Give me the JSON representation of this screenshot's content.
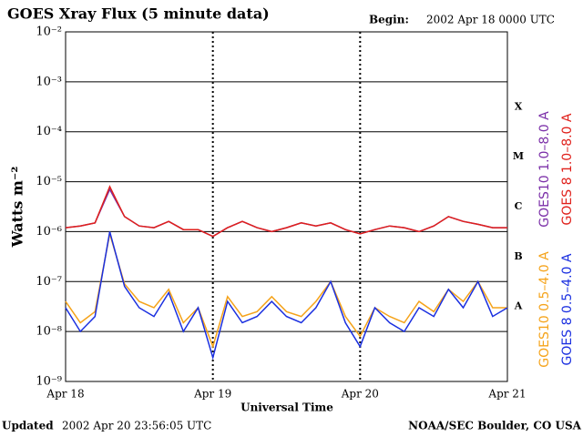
{
  "chart_data": {
    "type": "line",
    "title": "GOES Xray Flux (5 minute data)",
    "begin_label": "Begin:",
    "begin_time": "2002 Apr 18 0000 UTC",
    "y_label": "Watts m⁻²",
    "x_label": "Universal Time",
    "updated_label": "Updated",
    "updated_time": "2002 Apr 20 23:56:05 UTC",
    "source": "NOAA/SEC Boulder, CO USA",
    "class_labels": [
      "X",
      "M",
      "C",
      "B",
      "A"
    ],
    "log_y": true,
    "grid": true,
    "xlim": [
      0,
      3
    ],
    "xticks": [
      {
        "value": 0,
        "label": "Apr 18"
      },
      {
        "value": 1,
        "label": "Apr 19"
      },
      {
        "value": 2,
        "label": "Apr 20"
      },
      {
        "value": 3,
        "label": "Apr 21"
      }
    ],
    "ylim": [
      1e-09,
      0.01
    ],
    "yticks": [
      {
        "value": 1e-09,
        "label": "10⁻⁹"
      },
      {
        "value": 1e-08,
        "label": "10⁻⁸"
      },
      {
        "value": 1e-07,
        "label": "10⁻⁷"
      },
      {
        "value": 1e-06,
        "label": "10⁻⁶"
      },
      {
        "value": 1e-05,
        "label": "10⁻⁵"
      },
      {
        "value": 0.0001,
        "label": "10⁻⁴"
      },
      {
        "value": 0.001,
        "label": "10⁻³"
      },
      {
        "value": 0.01,
        "label": "10⁻²"
      }
    ],
    "x": [
      0,
      0.1,
      0.2,
      0.3,
      0.4,
      0.5,
      0.6,
      0.7,
      0.8,
      0.9,
      1.0,
      1.1,
      1.2,
      1.3,
      1.4,
      1.5,
      1.6,
      1.7,
      1.8,
      1.9,
      2.0,
      2.1,
      2.2,
      2.3,
      2.4,
      2.5,
      2.6,
      2.7,
      2.8,
      2.9,
      3.0
    ],
    "series": [
      {
        "name": "GOES10 1.0–8.0 A",
        "color": "#7b2fa8",
        "values": [
          1.2e-06,
          1.3e-06,
          1.5e-06,
          7e-06,
          2e-06,
          1.3e-06,
          1.2e-06,
          1.6e-06,
          1.1e-06,
          1.1e-06,
          8e-07,
          1.2e-06,
          1.6e-06,
          1.2e-06,
          1e-06,
          1.2e-06,
          1.5e-06,
          1.3e-06,
          1.5e-06,
          1.1e-06,
          9e-07,
          1.1e-06,
          1.3e-06,
          1.2e-06,
          1e-06,
          1.3e-06,
          2e-06,
          1.6e-06,
          1.4e-06,
          1.2e-06,
          1.2e-06
        ]
      },
      {
        "name": "GOES 8 1.0–8.0 A",
        "color": "#e0201b",
        "values": [
          1.2e-06,
          1.3e-06,
          1.5e-06,
          8e-06,
          2e-06,
          1.3e-06,
          1.2e-06,
          1.6e-06,
          1.1e-06,
          1.1e-06,
          8e-07,
          1.2e-06,
          1.6e-06,
          1.2e-06,
          1e-06,
          1.2e-06,
          1.5e-06,
          1.3e-06,
          1.5e-06,
          1.1e-06,
          9e-07,
          1.1e-06,
          1.3e-06,
          1.2e-06,
          1e-06,
          1.3e-06,
          2e-06,
          1.6e-06,
          1.4e-06,
          1.2e-06,
          1.2e-06
        ]
      },
      {
        "name": "GOES10 0.5–4.0 A",
        "color": "#f5a31a",
        "values": [
          4e-08,
          1.5e-08,
          2.5e-08,
          9e-07,
          9e-08,
          4e-08,
          3e-08,
          7e-08,
          1.5e-08,
          3e-08,
          5e-09,
          5e-08,
          2e-08,
          2.5e-08,
          5e-08,
          2.5e-08,
          2e-08,
          4e-08,
          1e-07,
          2e-08,
          8e-09,
          3e-08,
          2e-08,
          1.5e-08,
          4e-08,
          2.5e-08,
          7e-08,
          4e-08,
          1e-07,
          3e-08,
          3e-08
        ]
      },
      {
        "name": "GOES 8 0.5–4.0 A",
        "color": "#1a2fe0",
        "values": [
          3e-08,
          1e-08,
          2e-08,
          1e-06,
          8e-08,
          3e-08,
          2e-08,
          6e-08,
          1e-08,
          3e-08,
          3e-09,
          4e-08,
          1.5e-08,
          2e-08,
          4e-08,
          2e-08,
          1.5e-08,
          3e-08,
          1e-07,
          1.5e-08,
          5e-09,
          3e-08,
          1.5e-08,
          1e-08,
          3e-08,
          2e-08,
          7e-08,
          3e-08,
          1e-07,
          2e-08,
          3e-08
        ]
      }
    ]
  }
}
